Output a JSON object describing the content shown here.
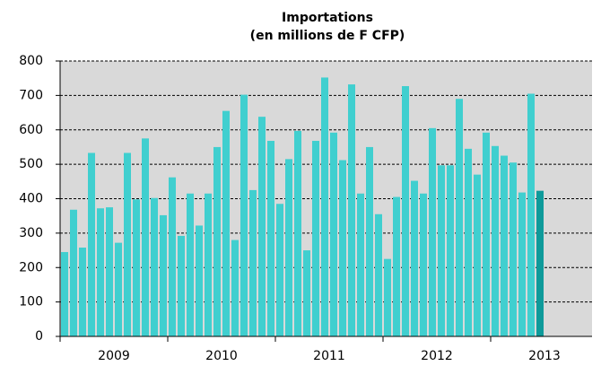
{
  "chart_data": {
    "type": "bar",
    "title": "Importations",
    "subtitle": "(en millions de F CFP)",
    "groups": [
      "2009",
      "2010",
      "2011",
      "2012",
      "2013"
    ],
    "values": [
      245,
      368,
      258,
      533,
      372,
      375,
      272,
      533,
      398,
      575,
      402,
      352,
      462,
      292,
      415,
      322,
      415,
      550,
      655,
      280,
      702,
      425,
      638,
      568,
      385,
      515,
      597,
      250,
      568,
      752,
      592,
      512,
      732,
      415,
      550,
      355,
      225,
      405,
      727,
      452,
      415,
      605,
      497,
      497,
      690,
      545,
      470,
      592,
      553,
      525,
      505,
      418,
      705,
      423
    ],
    "color": "#40cfcf",
    "highlight_color": "#0e9a9a",
    "ylim": [
      0,
      800
    ],
    "yticks": [
      0,
      100,
      200,
      300,
      400,
      500,
      600,
      700,
      800
    ],
    "grid": true
  }
}
